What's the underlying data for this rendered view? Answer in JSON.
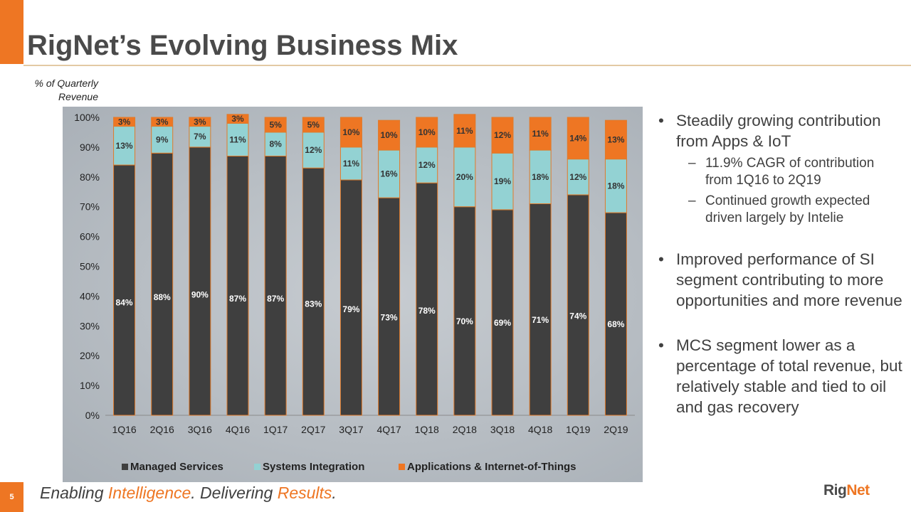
{
  "slide": {
    "title": "RigNet’s Evolving Business Mix",
    "page_number": "5",
    "y_caption_line1": "% of Quarterly",
    "y_caption_line2": "Revenue"
  },
  "colors": {
    "accent": "#ee7623",
    "managed_services": "#3f3f3f",
    "systems_integration": "#93d2d3",
    "apps_iot": "#ee7623"
  },
  "chart_data": {
    "type": "bar",
    "stacked": true,
    "categories": [
      "1Q16",
      "2Q16",
      "3Q16",
      "4Q16",
      "1Q17",
      "2Q17",
      "3Q17",
      "4Q17",
      "1Q18",
      "2Q18",
      "3Q18",
      "4Q18",
      "1Q19",
      "2Q19"
    ],
    "series": [
      {
        "name": "Managed Services",
        "values": [
          84,
          88,
          90,
          87,
          87,
          83,
          79,
          73,
          78,
          70,
          69,
          71,
          74,
          68
        ]
      },
      {
        "name": "Systems Integration",
        "values": [
          13,
          9,
          7,
          11,
          8,
          12,
          11,
          16,
          12,
          20,
          19,
          18,
          12,
          18
        ]
      },
      {
        "name": "Applications & Internet-of-Things",
        "values": [
          3,
          3,
          3,
          3,
          5,
          5,
          10,
          10,
          10,
          11,
          12,
          11,
          14,
          13
        ]
      }
    ],
    "yticks": [
      "0%",
      "10%",
      "20%",
      "30%",
      "40%",
      "50%",
      "60%",
      "70%",
      "80%",
      "90%",
      "100%"
    ],
    "ylim": [
      0,
      100
    ],
    "legend": "bottom",
    "grid": false
  },
  "bullets": [
    {
      "text": "Steadily growing contribution from Apps & IoT",
      "subs": [
        "11.9% CAGR of contribution from 1Q16 to 2Q19",
        "Continued growth expected driven largely by Intelie"
      ]
    },
    {
      "text": "Improved performance of SI segment contributing to more opportunities and more revenue",
      "subs": []
    },
    {
      "text": "MCS segment lower as a percentage of total revenue, but relatively stable and tied to oil and gas recovery",
      "subs": []
    }
  ],
  "footer": {
    "part1": "Enabling ",
    "part2": "Intelligence",
    "part3": ".  Delivering ",
    "part4": "Results",
    "part5": "."
  },
  "logo": {
    "part1": "Rig",
    "part2": "Net"
  }
}
